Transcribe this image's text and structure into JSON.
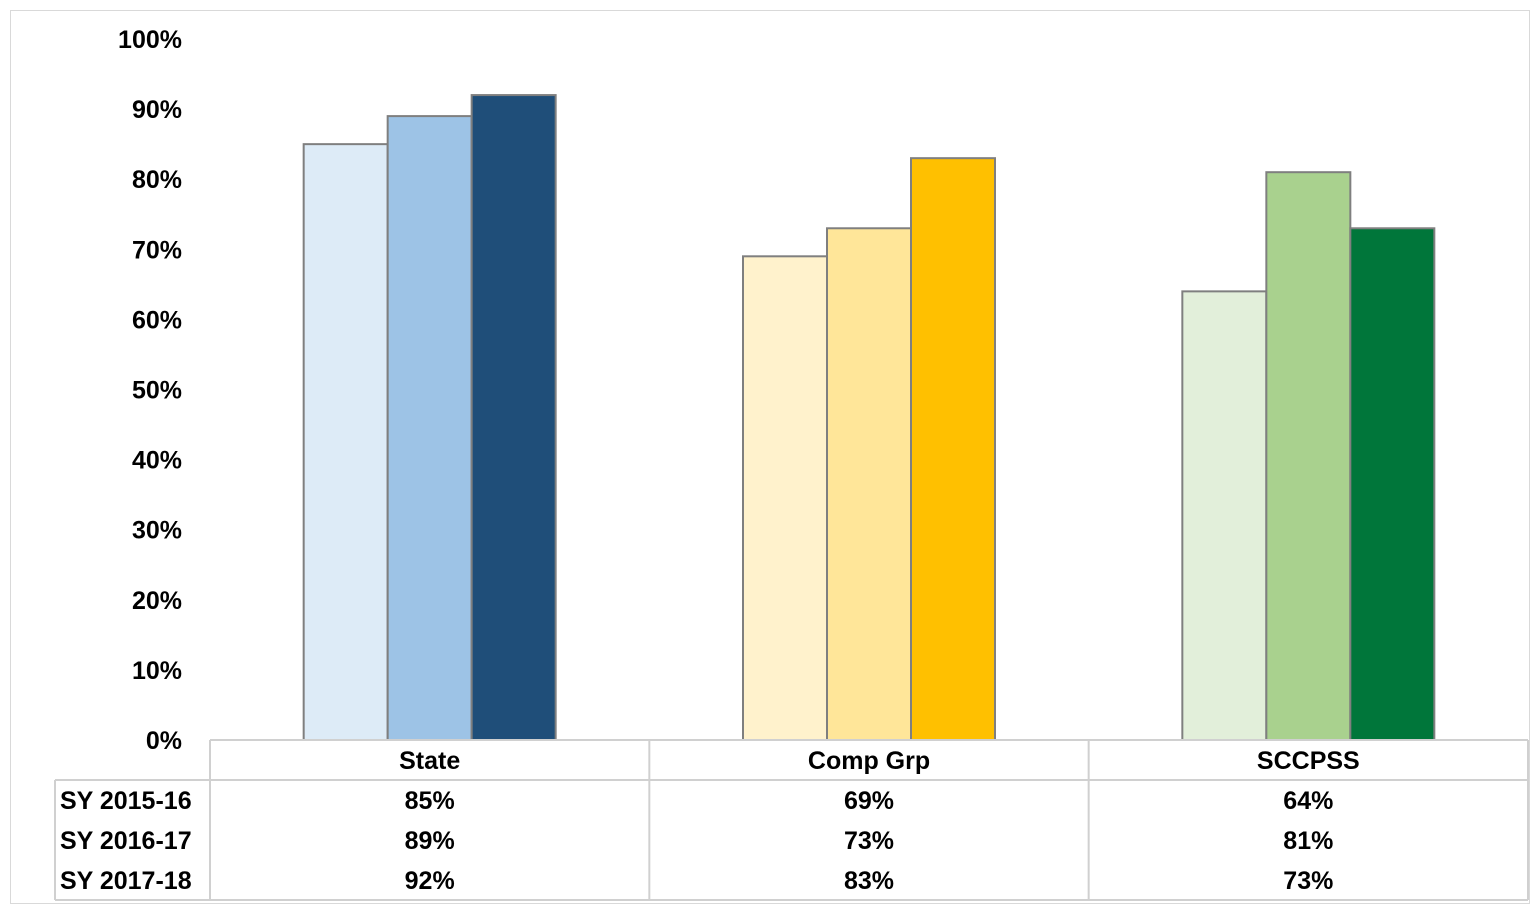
{
  "chart_data": {
    "type": "bar",
    "categories": [
      "State",
      "Comp Grp",
      "SCCPSS"
    ],
    "series": [
      {
        "name": "SY 2015-16",
        "values": [
          85,
          69,
          64
        ],
        "labels": [
          "85%",
          "69%",
          "64%"
        ]
      },
      {
        "name": "SY 2016-17",
        "values": [
          89,
          73,
          81
        ],
        "labels": [
          "89%",
          "73%",
          "81%"
        ]
      },
      {
        "name": "SY 2017-18",
        "values": [
          92,
          83,
          73
        ],
        "labels": [
          "92%",
          "83%",
          "73%"
        ]
      }
    ],
    "bar_colors": [
      [
        "#DDEBF7",
        "#9DC3E6",
        "#1F4E79"
      ],
      [
        "#FFF2CC",
        "#FFE699",
        "#FFC000"
      ],
      [
        "#E2EFDA",
        "#A9D18E",
        "#00763A"
      ]
    ],
    "ylim": [
      0,
      100
    ],
    "yticks": [
      "0%",
      "10%",
      "20%",
      "30%",
      "40%",
      "50%",
      "60%",
      "70%",
      "80%",
      "90%",
      "100%"
    ],
    "xlabel": "",
    "ylabel": "",
    "title": "",
    "grid": false,
    "legend": "data-table"
  }
}
